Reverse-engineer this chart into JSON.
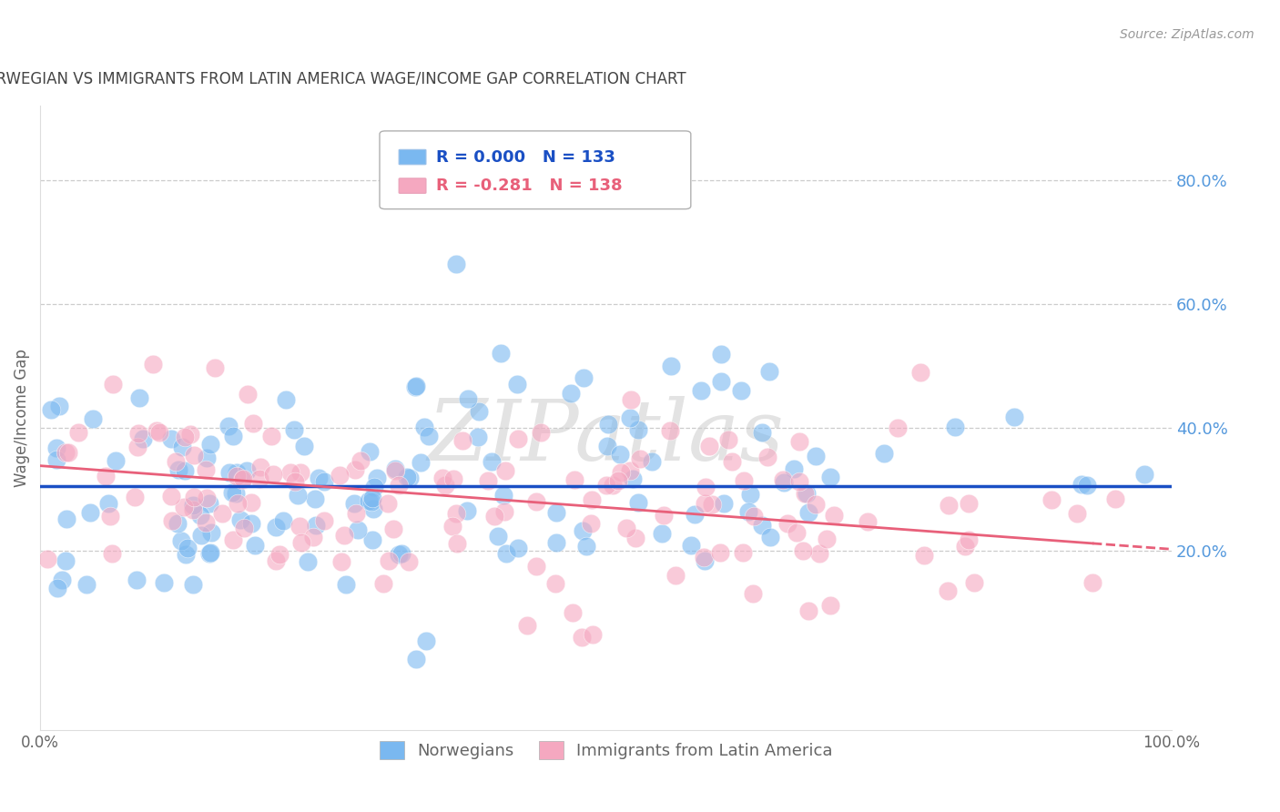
{
  "title": "NORWEGIAN VS IMMIGRANTS FROM LATIN AMERICA WAGE/INCOME GAP CORRELATION CHART",
  "source": "Source: ZipAtlas.com",
  "ylabel": "Wage/Income Gap",
  "right_yticks": [
    0.2,
    0.4,
    0.6,
    0.8
  ],
  "right_ytick_labels": [
    "20.0%",
    "40.0%",
    "60.0%",
    "80.0%"
  ],
  "xlim": [
    0.0,
    1.0
  ],
  "ylim": [
    -0.09,
    0.92
  ],
  "blue_color": "#7ab8f0",
  "pink_color": "#f5a8c0",
  "blue_line_color": "#1a4fc4",
  "pink_line_color": "#e8607a",
  "legend_R_blue": "R = 0.000",
  "legend_N_blue": "N = 133",
  "legend_R_pink": "R = -0.281",
  "legend_N_pink": "N = 138",
  "legend_label_blue": "Norwegians",
  "legend_label_pink": "Immigrants from Latin America",
  "watermark": "ZIPatlas",
  "title_color": "#444444",
  "source_color": "#999999",
  "right_axis_color": "#5599dd",
  "grid_color": "#cccccc",
  "blue_N": 133,
  "pink_N": 138,
  "blue_intercept": 0.305,
  "blue_slope": 0.0,
  "pink_intercept": 0.338,
  "pink_slope": -0.135
}
